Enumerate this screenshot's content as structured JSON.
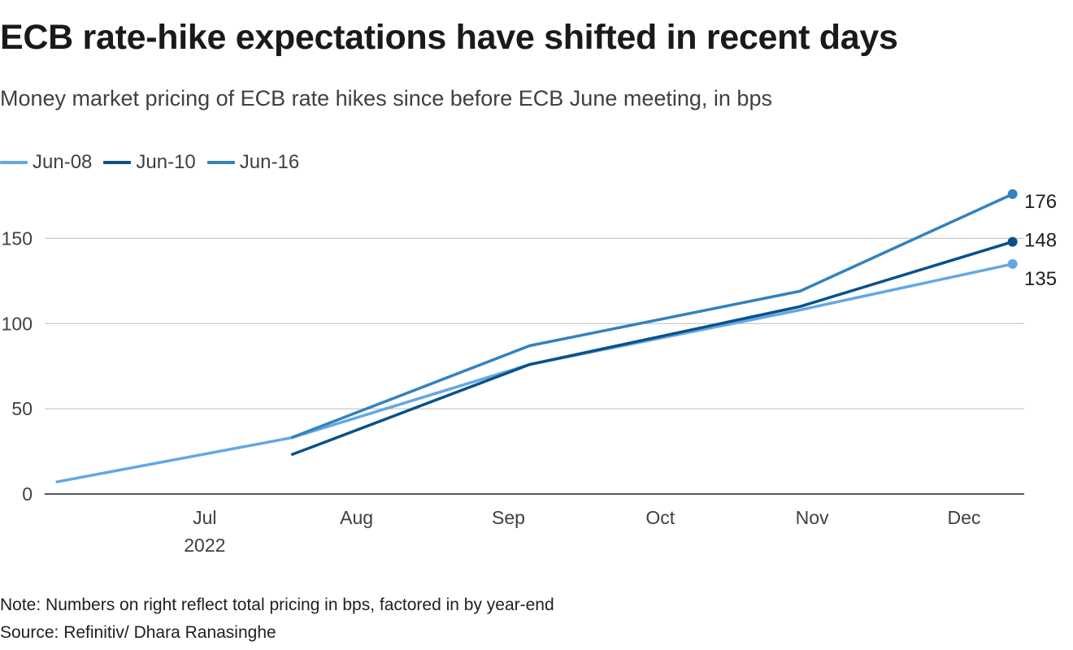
{
  "title": "ECB rate-hike expectations have shifted in recent days",
  "subtitle": "Money market pricing of ECB rate hikes since before ECB June meeting, in bps",
  "note": "Note: Numbers on right reflect total pricing in bps, factored in by year-end",
  "source": "Source: Refinitiv/ Dhara Ranasinghe",
  "colors": {
    "jun08": "#62a8e5",
    "jun10": "#0a5189",
    "jun16": "#3282c0",
    "grid": "#c8c8c8",
    "axis": "#202020",
    "tick_text": "#404040"
  },
  "chart_data": {
    "type": "line",
    "title": "ECB rate-hike expectations have shifted in recent days",
    "ylabel": "bps",
    "ylim": [
      0,
      185
    ],
    "yticks": [
      0,
      50,
      100,
      150
    ],
    "x_range": [
      0,
      6.45
    ],
    "xticks": [
      {
        "x": 1,
        "label": "Jul",
        "sublabel": "2022"
      },
      {
        "x": 2,
        "label": "Aug"
      },
      {
        "x": 3,
        "label": "Sep"
      },
      {
        "x": 4,
        "label": "Oct"
      },
      {
        "x": 5,
        "label": "Nov"
      },
      {
        "x": 6,
        "label": "Dec"
      }
    ],
    "legend_position": "top-left",
    "series": [
      {
        "key": "jun08",
        "name": "Jun-08",
        "points": [
          [
            0.1,
            7
          ],
          [
            1.65,
            33
          ],
          [
            3.22,
            76
          ],
          [
            5.0,
            108
          ],
          [
            6.4,
            135
          ]
        ],
        "end_label": "135"
      },
      {
        "key": "jun10",
        "name": "Jun-10",
        "points": [
          [
            1.65,
            23
          ],
          [
            3.22,
            76
          ],
          [
            5.0,
            110
          ],
          [
            6.4,
            148
          ]
        ],
        "end_label": "148"
      },
      {
        "key": "jun16",
        "name": "Jun-16",
        "points": [
          [
            1.65,
            33
          ],
          [
            3.22,
            87
          ],
          [
            5.0,
            119
          ],
          [
            6.4,
            176
          ]
        ],
        "end_label": "176"
      }
    ]
  }
}
